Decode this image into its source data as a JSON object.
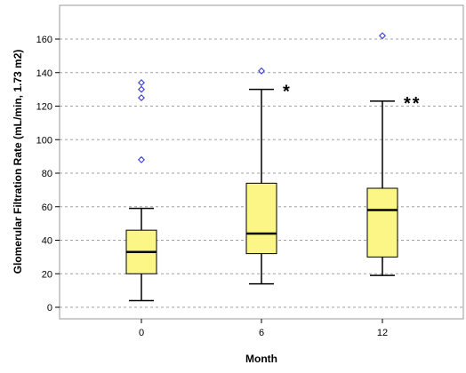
{
  "chart_data": {
    "type": "boxplot",
    "title": "",
    "xlabel": "Month",
    "ylabel": "Glomerular Filtration Rate (mL/min, 1.73 m2)",
    "ylim": [
      -5,
      180
    ],
    "yticks": [
      0,
      20,
      40,
      60,
      80,
      100,
      120,
      140,
      160
    ],
    "grid": "horizontal-dashed",
    "box_color": "#fbf685",
    "outlier_color": "#3a3ad6",
    "categories": [
      "0",
      "6",
      "12"
    ],
    "boxes": [
      {
        "category": "0",
        "whisker_low": 4,
        "q1": 20,
        "median": 33,
        "q3": 46,
        "whisker_high": 59,
        "outliers": [
          134,
          130,
          125,
          88
        ],
        "annotation": ""
      },
      {
        "category": "6",
        "whisker_low": 14,
        "q1": 32,
        "median": 44,
        "q3": 74,
        "whisker_high": 130,
        "outliers": [
          141
        ],
        "annotation": "*"
      },
      {
        "category": "12",
        "whisker_low": 19,
        "q1": 30,
        "median": 58,
        "q3": 71,
        "whisker_high": 123,
        "outliers": [
          162
        ],
        "annotation": "**"
      }
    ]
  }
}
